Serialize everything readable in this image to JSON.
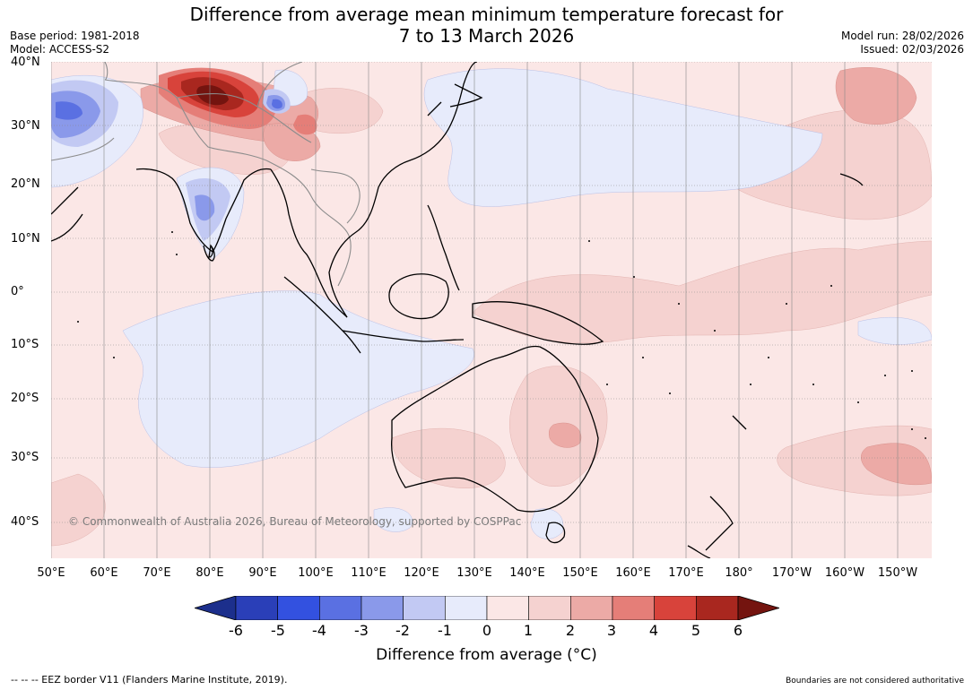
{
  "header": {
    "title_line1": "Difference from average mean minimum temperature forecast for",
    "title_line2": "7 to 13 March 2026",
    "base_period": "Base period: 1981-2018",
    "model": "Model: ACCESS-S2",
    "model_run": "Model run: 28/02/2026",
    "issued": "Issued: 02/03/2026"
  },
  "map": {
    "lat_labels": [
      "40°N",
      "30°N",
      "20°N",
      "10°N",
      "0°",
      "10°S",
      "20°S",
      "30°S",
      "40°S"
    ],
    "lon_labels": [
      "50°E",
      "60°E",
      "70°E",
      "80°E",
      "90°E",
      "100°E",
      "110°E",
      "120°E",
      "130°E",
      "140°E",
      "150°E",
      "160°E",
      "170°E",
      "180°",
      "170°W",
      "160°W",
      "150°W"
    ],
    "copyright": "© Commonwealth of Australia 2026, Bureau of Meteorology, supported by COSPPac",
    "colors": {
      "ocean_base": "#fbe7e6",
      "land_fill": "#fbe2e1",
      "coastline": "#000000",
      "border": "#8c8c8c"
    }
  },
  "colorbar": {
    "ticks": [
      "-6",
      "-5",
      "-4",
      "-3",
      "-2",
      "-1",
      "0",
      "1",
      "2",
      "3",
      "4",
      "5",
      "6"
    ],
    "colors": [
      "#1c2f8c",
      "#2a3fb8",
      "#3351e0",
      "#5a70e2",
      "#8a99ea",
      "#c2c9f3",
      "#e7ebfb",
      "#fbe7e6",
      "#f5d2d0",
      "#ecaaa6",
      "#e57e78",
      "#d8433b",
      "#a9271f",
      "#74140f"
    ],
    "title": "Difference from average (°C)"
  },
  "footer": {
    "eez_note": "--  --  -- EEZ border V11 (Flanders Marine Institute, 2019).",
    "disclaimer": "Boundaries are not considered authoritative"
  }
}
